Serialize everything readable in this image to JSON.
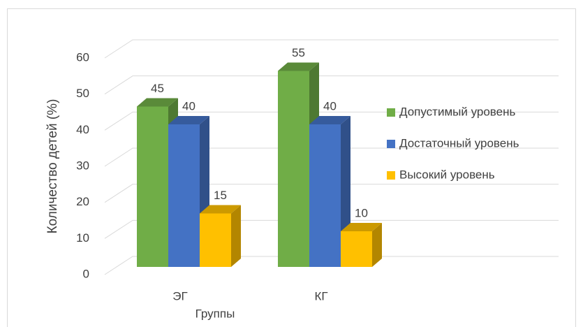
{
  "chart_data": {
    "type": "bar3d",
    "x_label": "Группы",
    "y_label": "Количество детей (%)",
    "categories": [
      "ЭГ",
      "КГ"
    ],
    "series": [
      {
        "name": "Допустимый уровень",
        "color": "#70ad47",
        "values": [
          45,
          55
        ]
      },
      {
        "name": "Достаточный уровень",
        "color": "#4472c4",
        "values": [
          40,
          40
        ]
      },
      {
        "name": "Высокий уровень",
        "color": "#ffc000",
        "values": [
          15,
          10
        ]
      }
    ],
    "ylim": [
      0,
      60
    ],
    "yticks": [
      0,
      10,
      20,
      30,
      40,
      50,
      60
    ],
    "grid": true,
    "legend": "right"
  }
}
